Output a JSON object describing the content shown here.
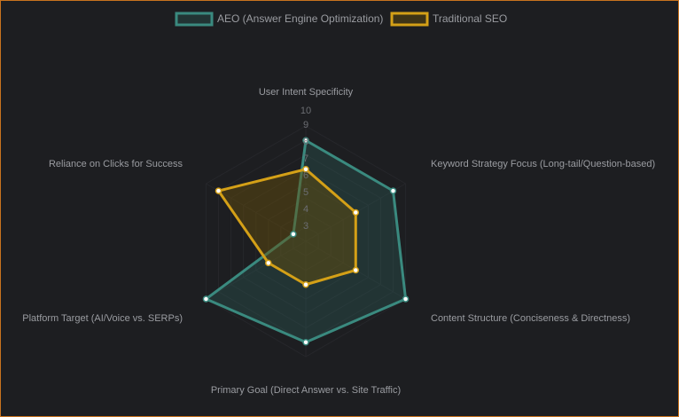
{
  "chart_data": {
    "type": "radar",
    "categories": [
      "User Intent Specificity",
      "Keyword Strategy Focus (Long-tail/Question-based)",
      "Content Structure (Conciseness & Directness)",
      "Primary Goal (Direct Answer vs. Site Traffic)",
      "Platform Target (AI/Voice vs. SERPs)",
      "Reliance on Clicks for Success"
    ],
    "series": [
      {
        "name": "AEO (Answer Engine Optimization)",
        "values": [
          9,
          9,
          10,
          9,
          10,
          3
        ],
        "color": "#3a8a7f",
        "fill": "rgba(45,95,90,0.35)"
      },
      {
        "name": "Traditional SEO",
        "values": [
          7,
          6,
          6,
          5,
          5,
          9
        ],
        "color": "#d4a017",
        "fill": "rgba(105,80,10,0.45)"
      }
    ],
    "ticks": [
      "3",
      "4",
      "5",
      "6",
      "7",
      "8",
      "9",
      "10"
    ],
    "rmin": 2,
    "rmax": 10,
    "legend": "top"
  }
}
